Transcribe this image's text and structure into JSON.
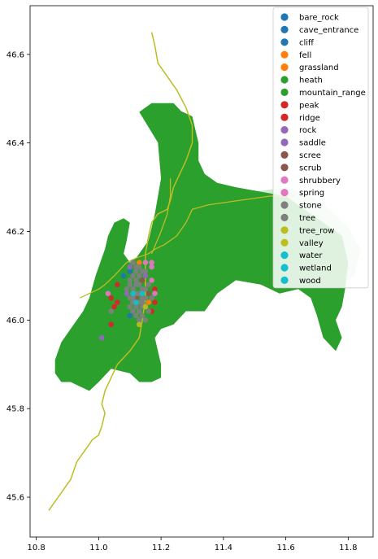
{
  "chart_data": {
    "type": "scatter",
    "title": "",
    "xlabel": "",
    "ylabel": "",
    "xlim": [
      10.78,
      11.88
    ],
    "ylim": [
      45.51,
      46.71
    ],
    "xticks": [
      10.8,
      11.0,
      11.2,
      11.4,
      11.6,
      11.8
    ],
    "xtick_labels": [
      "10.8",
      "11.0",
      "11.2",
      "11.4",
      "11.6",
      "11.8"
    ],
    "yticks": [
      45.6,
      45.8,
      46.0,
      46.2,
      46.4,
      46.6
    ],
    "ytick_labels": [
      "45.6",
      "45.8",
      "46.0",
      "46.2",
      "46.4",
      "46.6"
    ],
    "grid": false,
    "legend_position": "top-right",
    "legend": [
      {
        "label": "bare_rock",
        "color": "#1f77b4"
      },
      {
        "label": "cave_entrance",
        "color": "#1f77b4"
      },
      {
        "label": "cliff",
        "color": "#1f77b4"
      },
      {
        "label": "fell",
        "color": "#ff7f0e"
      },
      {
        "label": "grassland",
        "color": "#ff7f0e"
      },
      {
        "label": "heath",
        "color": "#2ca02c"
      },
      {
        "label": "mountain_range",
        "color": "#2ca02c"
      },
      {
        "label": "peak",
        "color": "#d62728"
      },
      {
        "label": "ridge",
        "color": "#d62728"
      },
      {
        "label": "rock",
        "color": "#9467bd"
      },
      {
        "label": "saddle",
        "color": "#9467bd"
      },
      {
        "label": "scree",
        "color": "#8c564b"
      },
      {
        "label": "scrub",
        "color": "#8c564b"
      },
      {
        "label": "shrubbery",
        "color": "#e377c2"
      },
      {
        "label": "spring",
        "color": "#e377c2"
      },
      {
        "label": "stone",
        "color": "#7f7f7f"
      },
      {
        "label": "tree",
        "color": "#7f7f7f"
      },
      {
        "label": "tree_row",
        "color": "#bcbd22"
      },
      {
        "label": "valley",
        "color": "#bcbd22"
      },
      {
        "label": "water",
        "color": "#17becf"
      },
      {
        "label": "wetland",
        "color": "#17becf"
      },
      {
        "label": "wood",
        "color": "#17becf"
      }
    ],
    "polygons": [
      {
        "category": "mountain_range",
        "color": "#2ca02c",
        "opacity": 1.0,
        "coords": [
          [
            11.13,
            46.47
          ],
          [
            11.17,
            46.49
          ],
          [
            11.24,
            46.49
          ],
          [
            11.28,
            46.46
          ],
          [
            11.3,
            46.42
          ],
          [
            11.32,
            46.4
          ],
          [
            11.32,
            46.36
          ],
          [
            11.34,
            46.33
          ],
          [
            11.38,
            46.31
          ],
          [
            11.44,
            46.3
          ],
          [
            11.52,
            46.29
          ],
          [
            11.6,
            46.28
          ],
          [
            11.66,
            46.25
          ],
          [
            11.72,
            46.22
          ],
          [
            11.78,
            46.19
          ],
          [
            11.8,
            46.13
          ],
          [
            11.79,
            46.07
          ],
          [
            11.78,
            46.03
          ],
          [
            11.76,
            46.0
          ],
          [
            11.78,
            45.96
          ],
          [
            11.76,
            45.93
          ],
          [
            11.72,
            45.96
          ],
          [
            11.7,
            46.01
          ],
          [
            11.68,
            46.05
          ],
          [
            11.64,
            46.07
          ],
          [
            11.58,
            46.06
          ],
          [
            11.52,
            46.08
          ],
          [
            11.44,
            46.09
          ],
          [
            11.38,
            46.06
          ],
          [
            11.34,
            46.02
          ],
          [
            11.28,
            46.02
          ],
          [
            11.24,
            45.99
          ],
          [
            11.2,
            45.98
          ],
          [
            11.18,
            45.96
          ],
          [
            11.2,
            45.9
          ],
          [
            11.2,
            45.87
          ],
          [
            11.17,
            45.86
          ],
          [
            11.13,
            45.86
          ],
          [
            11.1,
            45.88
          ],
          [
            11.04,
            45.89
          ],
          [
            11.0,
            45.86
          ],
          [
            10.97,
            45.84
          ],
          [
            10.94,
            45.85
          ],
          [
            10.91,
            45.86
          ],
          [
            10.88,
            45.86
          ],
          [
            10.86,
            45.88
          ],
          [
            10.86,
            45.91
          ],
          [
            10.88,
            45.95
          ],
          [
            10.92,
            45.99
          ],
          [
            10.95,
            46.02
          ],
          [
            10.97,
            46.05
          ],
          [
            10.99,
            46.1
          ],
          [
            11.02,
            46.16
          ],
          [
            11.03,
            46.19
          ],
          [
            11.05,
            46.22
          ],
          [
            11.08,
            46.23
          ],
          [
            11.1,
            46.22
          ],
          [
            11.09,
            46.18
          ],
          [
            11.08,
            46.15
          ],
          [
            11.1,
            46.13
          ],
          [
            11.12,
            46.14
          ],
          [
            11.16,
            46.18
          ],
          [
            11.18,
            46.24
          ],
          [
            11.2,
            46.32
          ],
          [
            11.19,
            46.4
          ],
          [
            11.2,
            46.46
          ],
          [
            11.24,
            46.48
          ],
          [
            11.3,
            46.46
          ],
          [
            11.32,
            46.4
          ],
          [
            11.26,
            46.32
          ]
        ]
      },
      {
        "category": "heath",
        "color": "#2ca02c",
        "opacity": 0.22,
        "coords": [
          [
            11.3,
            46.27
          ],
          [
            11.4,
            46.28
          ],
          [
            11.5,
            46.29
          ],
          [
            11.6,
            46.3
          ],
          [
            11.68,
            46.28
          ],
          [
            11.74,
            46.25
          ],
          [
            11.8,
            46.21
          ],
          [
            11.84,
            46.16
          ],
          [
            11.82,
            46.1
          ],
          [
            11.78,
            46.08
          ],
          [
            11.76,
            46.12
          ],
          [
            11.7,
            46.15
          ],
          [
            11.62,
            46.18
          ],
          [
            11.52,
            46.21
          ],
          [
            11.42,
            46.24
          ],
          [
            11.34,
            46.25
          ]
        ]
      }
    ],
    "lines": [
      {
        "category": "valley",
        "color": "#bcbd22",
        "width": 1.5,
        "coords": [
          [
            11.17,
            46.65
          ],
          [
            11.18,
            46.62
          ],
          [
            11.19,
            46.58
          ],
          [
            11.22,
            46.55
          ],
          [
            11.25,
            46.52
          ],
          [
            11.28,
            46.48
          ],
          [
            11.3,
            46.44
          ],
          [
            11.3,
            46.4
          ],
          [
            11.28,
            46.36
          ],
          [
            11.26,
            46.33
          ],
          [
            11.24,
            46.3
          ],
          [
            11.23,
            46.27
          ],
          [
            11.22,
            46.25
          ],
          [
            11.19,
            46.24
          ],
          [
            11.17,
            46.22
          ],
          [
            11.16,
            46.19
          ],
          [
            11.15,
            46.15
          ],
          [
            11.15,
            46.1
          ],
          [
            11.15,
            46.05
          ],
          [
            11.14,
            46.0
          ],
          [
            11.13,
            45.96
          ],
          [
            11.1,
            45.93
          ],
          [
            11.06,
            45.9
          ],
          [
            11.04,
            45.87
          ],
          [
            11.02,
            45.84
          ],
          [
            11.01,
            45.81
          ],
          [
            11.02,
            45.79
          ],
          [
            11.01,
            45.76
          ],
          [
            11.0,
            45.74
          ],
          [
            10.98,
            45.73
          ],
          [
            10.96,
            45.71
          ],
          [
            10.93,
            45.68
          ],
          [
            10.91,
            45.64
          ],
          [
            10.87,
            45.6
          ],
          [
            10.84,
            45.57
          ]
        ]
      },
      {
        "category": "valley",
        "color": "#bcbd22",
        "width": 1.3,
        "coords": [
          [
            11.63,
            46.28
          ],
          [
            11.55,
            46.28
          ],
          [
            11.45,
            46.27
          ],
          [
            11.35,
            46.26
          ],
          [
            11.3,
            46.25
          ],
          [
            11.28,
            46.22
          ],
          [
            11.25,
            46.19
          ],
          [
            11.21,
            46.17
          ],
          [
            11.18,
            46.16
          ],
          [
            11.16,
            46.15
          ],
          [
            11.12,
            46.14
          ],
          [
            11.09,
            46.13
          ],
          [
            11.05,
            46.1
          ],
          [
            11.02,
            46.08
          ],
          [
            11.0,
            46.07
          ],
          [
            10.97,
            46.06
          ],
          [
            10.94,
            46.05
          ]
        ]
      },
      {
        "category": "valley",
        "color": "#bcbd22",
        "width": 1.3,
        "coords": [
          [
            11.17,
            46.15
          ],
          [
            11.2,
            46.2
          ],
          [
            11.22,
            46.24
          ],
          [
            11.23,
            46.28
          ],
          [
            11.23,
            46.32
          ]
        ]
      }
    ],
    "points": [
      {
        "x": 11.1,
        "y": 46.11,
        "category": "bare_rock"
      },
      {
        "x": 11.08,
        "y": 46.1,
        "category": "cave_entrance"
      },
      {
        "x": 11.12,
        "y": 46.08,
        "category": "cliff"
      },
      {
        "x": 11.1,
        "y": 46.01,
        "category": "cliff"
      },
      {
        "x": 11.14,
        "y": 46.03,
        "category": "bare_rock"
      },
      {
        "x": 11.13,
        "y": 46.13,
        "category": "fell"
      },
      {
        "x": 11.16,
        "y": 46.04,
        "category": "grassland"
      },
      {
        "x": 11.07,
        "y": 46.09,
        "category": "heath"
      },
      {
        "x": 11.06,
        "y": 46.08,
        "category": "peak"
      },
      {
        "x": 11.18,
        "y": 46.07,
        "category": "peak"
      },
      {
        "x": 11.04,
        "y": 46.05,
        "category": "peak"
      },
      {
        "x": 11.05,
        "y": 46.03,
        "category": "ridge"
      },
      {
        "x": 11.04,
        "y": 45.99,
        "category": "peak"
      },
      {
        "x": 11.17,
        "y": 46.02,
        "category": "ridge"
      },
      {
        "x": 11.18,
        "y": 46.04,
        "category": "peak"
      },
      {
        "x": 11.06,
        "y": 46.04,
        "category": "peak"
      },
      {
        "x": 11.09,
        "y": 46.06,
        "category": "rock"
      },
      {
        "x": 11.1,
        "y": 46.12,
        "category": "saddle"
      },
      {
        "x": 11.15,
        "y": 46.1,
        "category": "rock"
      },
      {
        "x": 11.01,
        "y": 45.96,
        "category": "rock"
      },
      {
        "x": 11.12,
        "y": 46.05,
        "category": "scree"
      },
      {
        "x": 11.14,
        "y": 46.09,
        "category": "scrub"
      },
      {
        "x": 11.16,
        "y": 46.06,
        "category": "scree"
      },
      {
        "x": 11.17,
        "y": 46.13,
        "category": "shrubbery"
      },
      {
        "x": 11.17,
        "y": 46.12,
        "category": "spring"
      },
      {
        "x": 11.03,
        "y": 46.06,
        "category": "shrubbery"
      },
      {
        "x": 11.17,
        "y": 46.09,
        "category": "spring"
      },
      {
        "x": 11.18,
        "y": 46.06,
        "category": "shrubbery"
      },
      {
        "x": 11.15,
        "y": 46.13,
        "category": "spring"
      },
      {
        "x": 11.11,
        "y": 46.13,
        "category": "stone"
      },
      {
        "x": 11.12,
        "y": 46.12,
        "category": "tree"
      },
      {
        "x": 11.11,
        "y": 46.1,
        "category": "stone"
      },
      {
        "x": 11.13,
        "y": 46.1,
        "category": "tree"
      },
      {
        "x": 11.12,
        "y": 46.08,
        "category": "stone"
      },
      {
        "x": 11.14,
        "y": 46.07,
        "category": "tree"
      },
      {
        "x": 11.13,
        "y": 46.06,
        "category": "stone"
      },
      {
        "x": 11.15,
        "y": 46.05,
        "category": "tree"
      },
      {
        "x": 11.14,
        "y": 46.04,
        "category": "stone"
      },
      {
        "x": 11.12,
        "y": 46.03,
        "category": "tree"
      },
      {
        "x": 11.13,
        "y": 46.02,
        "category": "stone"
      },
      {
        "x": 11.14,
        "y": 46.01,
        "category": "tree"
      },
      {
        "x": 11.15,
        "y": 46.0,
        "category": "stone"
      },
      {
        "x": 11.11,
        "y": 46.04,
        "category": "tree"
      },
      {
        "x": 11.1,
        "y": 46.05,
        "category": "stone"
      },
      {
        "x": 11.09,
        "y": 46.07,
        "category": "tree"
      },
      {
        "x": 11.1,
        "y": 46.09,
        "category": "stone"
      },
      {
        "x": 11.12,
        "y": 46.11,
        "category": "tree"
      },
      {
        "x": 11.13,
        "y": 46.12,
        "category": "stone"
      },
      {
        "x": 11.14,
        "y": 46.11,
        "category": "tree"
      },
      {
        "x": 11.16,
        "y": 46.08,
        "category": "stone"
      },
      {
        "x": 11.15,
        "y": 46.07,
        "category": "tree"
      },
      {
        "x": 11.11,
        "y": 46.07,
        "category": "stone"
      },
      {
        "x": 11.13,
        "y": 46.08,
        "category": "tree"
      },
      {
        "x": 11.12,
        "y": 46.06,
        "category": "stone"
      },
      {
        "x": 11.14,
        "y": 46.03,
        "category": "tree"
      },
      {
        "x": 11.16,
        "y": 46.02,
        "category": "stone"
      },
      {
        "x": 11.04,
        "y": 46.02,
        "category": "stone"
      },
      {
        "x": 11.11,
        "y": 46.02,
        "category": "tree"
      },
      {
        "x": 11.1,
        "y": 46.03,
        "category": "stone"
      },
      {
        "x": 11.15,
        "y": 46.11,
        "category": "tree"
      },
      {
        "x": 11.17,
        "y": 46.05,
        "category": "stone"
      },
      {
        "x": 11.12,
        "y": 46.01,
        "category": "tree"
      },
      {
        "x": 11.13,
        "y": 46.0,
        "category": "stone"
      },
      {
        "x": 11.14,
        "y": 46.05,
        "category": "tree"
      },
      {
        "x": 11.11,
        "y": 46.05,
        "category": "stone"
      },
      {
        "x": 11.13,
        "y": 46.04,
        "category": "tree"
      },
      {
        "x": 11.12,
        "y": 46.09,
        "category": "stone"
      },
      {
        "x": 11.1,
        "y": 46.08,
        "category": "tree"
      },
      {
        "x": 11.13,
        "y": 45.99,
        "category": "tree_row"
      },
      {
        "x": 11.15,
        "y": 46.03,
        "category": "valley"
      },
      {
        "x": 11.12,
        "y": 46.04,
        "category": "water"
      },
      {
        "x": 11.14,
        "y": 46.06,
        "category": "wetland"
      },
      {
        "x": 11.11,
        "y": 46.06,
        "category": "wood"
      }
    ]
  }
}
